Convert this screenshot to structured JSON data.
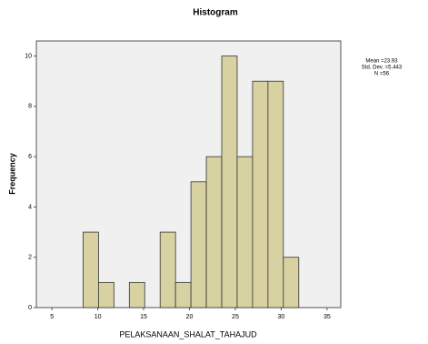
{
  "chart_data": {
    "type": "histogram",
    "title": "Histogram",
    "xlabel": "PELAKSANAAN_SHALAT_TAHAJUD",
    "ylabel": "Frequency",
    "bins": [
      8.4,
      10.08,
      11.76,
      13.44,
      15.12,
      16.8,
      18.48,
      20.16,
      21.84,
      23.52,
      25.2,
      26.88,
      28.56,
      30.24,
      31.92
    ],
    "values": [
      3,
      1,
      0,
      1,
      0,
      3,
      1,
      5,
      6,
      10,
      6,
      9,
      9,
      2
    ],
    "color": "#d8d2a2",
    "xlim": [
      3.3,
      36.5
    ],
    "ylim": [
      0,
      10.6
    ],
    "xticks": [
      5,
      10,
      15,
      20,
      25,
      30,
      35
    ],
    "yticks": [
      0,
      2,
      4,
      6,
      8,
      10
    ],
    "stats": [
      "Mean =23.93",
      "Std. Dev. =5.443",
      "N =56"
    ]
  }
}
